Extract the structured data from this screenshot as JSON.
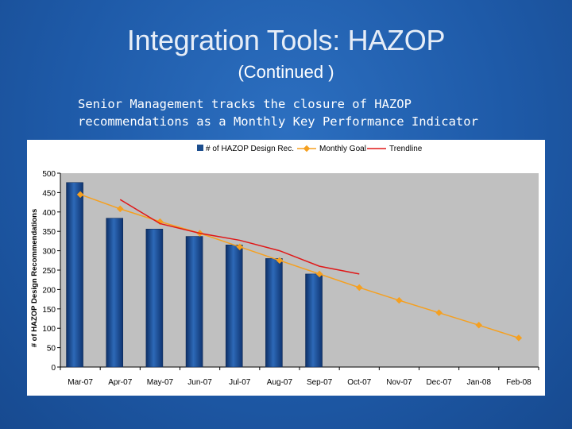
{
  "slide": {
    "title": "Integration Tools: HAZOP",
    "subtitle": "(Continued )",
    "caption_line1": "Senior Management tracks the closure of HAZOP",
    "caption_line2": "recommendations as a Monthly Key Performance Indicator"
  },
  "chart_data": {
    "type": "bar",
    "title": "",
    "xlabel": "",
    "ylabel": "# of HAZOP Design Recommendations",
    "ylim": [
      0,
      500
    ],
    "yticks": [
      0,
      50,
      100,
      150,
      200,
      250,
      300,
      350,
      400,
      450,
      500
    ],
    "categories": [
      "Mar-07",
      "Apr-07",
      "May-07",
      "Jun-07",
      "Jul-07",
      "Aug-07",
      "Sep-07",
      "Oct-07",
      "Nov-07",
      "Dec-07",
      "Jan-08",
      "Feb-08"
    ],
    "series": [
      {
        "name": "# of HAZOP Design Rec.",
        "kind": "bar",
        "color": "#1c4e8e",
        "values": [
          476,
          384,
          356,
          337,
          315,
          280,
          240,
          null,
          null,
          null,
          null,
          null
        ]
      },
      {
        "name": "Monthly Goal",
        "kind": "line-marker",
        "color": "#f5a020",
        "values": [
          445,
          408,
          375,
          345,
          310,
          275,
          240,
          205,
          172,
          140,
          108,
          75
        ]
      },
      {
        "name": "Trendline",
        "kind": "line",
        "color": "#e01818",
        "values": [
          null,
          432,
          370,
          345,
          327,
          300,
          260,
          240,
          null,
          null,
          null,
          null
        ]
      }
    ],
    "grid": false,
    "legend_position": "top"
  }
}
